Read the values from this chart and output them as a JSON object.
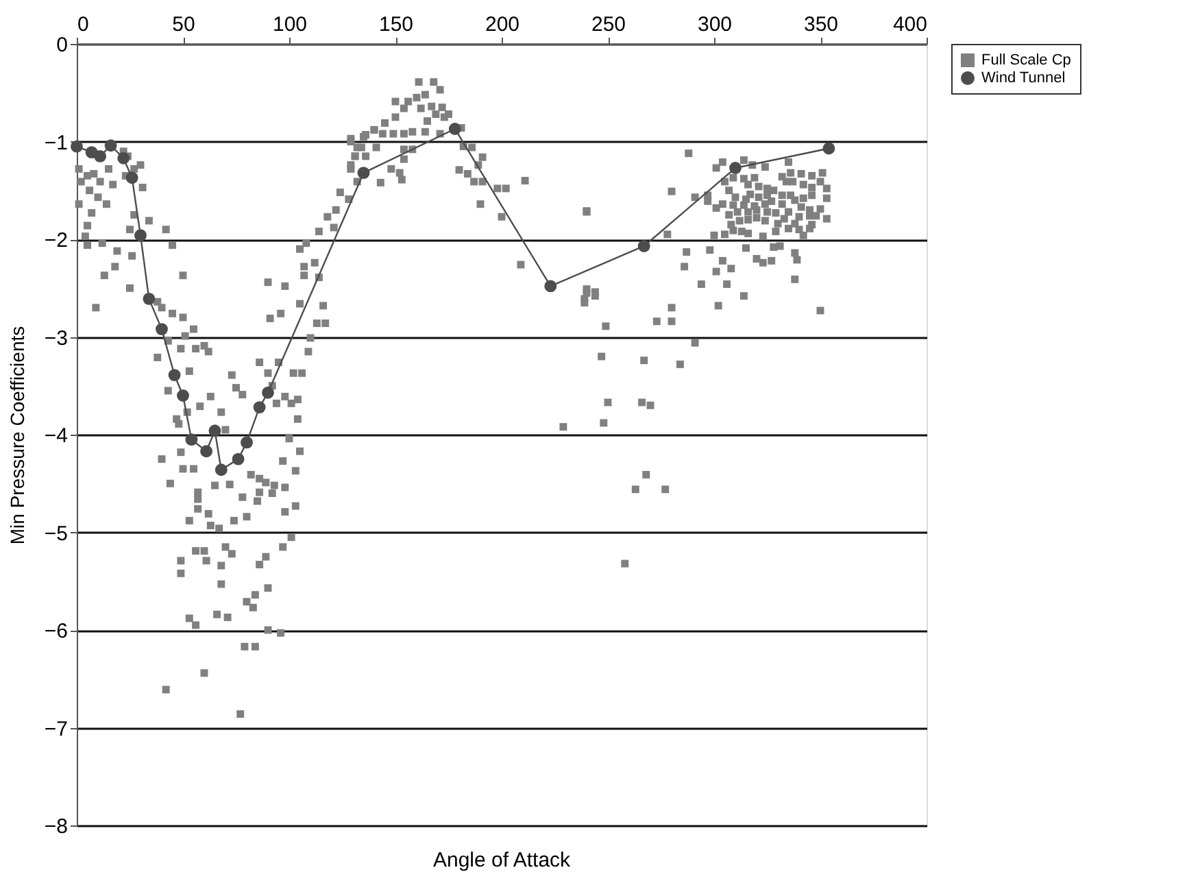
{
  "chart_data": {
    "type": "scatter",
    "xlabel": "Angle of Attack",
    "ylabel": "Min Pressure Coefficients",
    "xlim": [
      0,
      400
    ],
    "xticks": [
      0,
      50,
      100,
      150,
      200,
      250,
      300,
      350,
      400
    ],
    "ylim": [
      -8,
      0
    ],
    "yticks": [
      0,
      {
        "value": -1,
        "label": "−1"
      },
      {
        "value": -2,
        "label": "−2"
      },
      {
        "value": -3,
        "label": "−3"
      },
      {
        "value": -4,
        "label": "−4"
      },
      {
        "value": -5,
        "label": "−5"
      },
      {
        "value": -6,
        "label": "−6"
      },
      {
        "value": -7,
        "label": "−7"
      },
      {
        "value": -8,
        "label": "−8"
      }
    ],
    "grid": "y",
    "legend": "right",
    "series": [
      {
        "name": "Full Scale Cp",
        "type": "scatter",
        "marker": "square",
        "color": "#808080",
        "x": [
          1,
          5,
          2,
          8,
          6,
          11,
          10,
          15,
          17,
          14,
          1,
          7,
          5,
          4,
          5,
          12,
          9,
          13,
          18,
          19,
          22,
          24,
          30,
          27,
          23,
          31,
          27,
          25,
          26,
          34,
          42,
          45,
          25,
          50,
          38,
          40,
          45,
          50,
          55,
          43,
          51,
          49,
          38,
          56,
          62,
          60,
          53,
          43,
          52,
          58,
          63,
          73,
          75,
          78,
          68,
          70,
          47,
          48,
          86,
          90,
          92,
          94,
          98,
          101,
          104,
          106,
          104,
          90,
          98,
          91,
          96,
          105,
          107,
          107,
          112,
          114,
          116,
          113,
          117,
          110,
          109,
          105,
          114,
          118,
          122,
          121,
          124,
          129,
          131,
          132,
          136,
          129,
          136,
          140,
          108,
          102,
          95,
          40,
          49,
          50,
          55,
          44,
          57,
          57,
          57,
          53,
          63,
          67,
          62,
          65,
          72,
          78,
          85,
          86,
          92,
          98,
          103,
          80,
          74,
          82,
          86,
          89,
          93,
          98,
          97,
          103,
          105,
          100,
          101,
          97,
          89,
          86,
          90,
          84,
          80,
          83,
          70,
          73,
          68,
          68,
          66,
          71,
          56,
          60,
          61,
          49,
          49,
          53,
          56,
          90,
          96,
          79,
          84,
          60,
          42,
          77,
          161,
          168,
          164,
          171,
          150,
          156,
          160,
          154,
          162,
          167,
          172,
          165,
          169,
          173,
          150,
          145,
          140,
          135,
          144,
          149,
          154,
          158,
          164,
          171,
          175,
          181,
          129,
          141,
          154,
          158,
          134,
          186,
          182,
          131,
          191,
          154,
          148,
          129,
          152,
          153,
          143,
          180,
          184,
          189,
          187,
          191,
          198,
          202,
          211,
          190,
          200,
          132,
          128,
          240,
          209,
          240,
          244,
          239,
          229,
          288,
          280,
          240,
          278,
          291,
          297,
          297,
          301,
          304,
          301,
          314,
          318,
          324,
          335,
          332,
          336,
          341,
          346,
          351,
          305,
          309,
          314,
          319,
          316,
          321,
          325,
          328,
          334,
          337,
          342,
          346,
          350,
          353,
          307,
          310,
          315,
          317,
          321,
          325,
          332,
          336,
          338,
          342,
          346,
          353,
          304,
          309,
          314,
          319,
          324,
          327,
          332,
          341,
          345,
          350,
          307,
          311,
          316,
          320,
          325,
          329,
          335,
          340,
          345,
          348,
          353,
          308,
          312,
          316,
          320,
          324,
          330,
          333,
          338,
          346,
          300,
          305,
          309,
          313,
          316,
          323,
          329,
          335,
          340,
          342,
          345,
          287,
          298,
          304,
          301,
          308,
          286,
          294,
          306,
          315,
          320,
          323,
          327,
          328,
          331,
          338,
          339,
          338,
          350,
          314,
          302,
          280,
          273,
          280,
          240,
          244,
          239,
          249,
          291,
          247,
          267,
          284,
          250,
          266,
          270,
          248,
          268,
          263,
          277,
          258
        ],
        "values": [
          -1.28,
          -1.35,
          -1.41,
          -1.33,
          -1.5,
          -1.41,
          -1.57,
          -1.28,
          -1.44,
          -1.64,
          -1.64,
          -1.73,
          -1.86,
          -1.97,
          -2.06,
          -2.04,
          -2.7,
          -2.37,
          -2.28,
          -2.12,
          -1.1,
          -1.15,
          -1.24,
          -1.28,
          -1.35,
          -1.47,
          -1.75,
          -1.9,
          -2.17,
          -1.81,
          -1.9,
          -2.06,
          -2.5,
          -2.37,
          -2.64,
          -2.7,
          -2.76,
          -2.8,
          -2.92,
          -3.04,
          -2.99,
          -3.12,
          -3.21,
          -3.12,
          -3.15,
          -3.09,
          -3.35,
          -3.55,
          -3.77,
          -3.71,
          -3.61,
          -3.39,
          -3.52,
          -3.59,
          -3.77,
          -3.95,
          -3.84,
          -3.89,
          -3.26,
          -3.37,
          -3.5,
          -3.68,
          -3.61,
          -3.68,
          -3.64,
          -3.37,
          -3.84,
          -2.44,
          -2.48,
          -2.81,
          -2.76,
          -2.66,
          -2.37,
          -2.28,
          -2.24,
          -2.39,
          -2.68,
          -2.86,
          -2.86,
          -3.01,
          -3.15,
          -2.1,
          -1.92,
          -1.77,
          -1.7,
          -1.88,
          -1.52,
          -1.24,
          -1.15,
          -1.06,
          -1.15,
          -0.97,
          -0.93,
          -0.88,
          -2.04,
          -3.37,
          -3.26,
          -4.25,
          -4.18,
          -4.35,
          -4.35,
          -4.5,
          -4.59,
          -4.66,
          -4.76,
          -4.88,
          -4.93,
          -4.96,
          -4.81,
          -4.52,
          -4.51,
          -4.64,
          -4.68,
          -4.59,
          -4.6,
          -4.79,
          -4.73,
          -4.84,
          -4.88,
          -4.41,
          -4.45,
          -4.49,
          -4.52,
          -4.54,
          -4.27,
          -4.37,
          -4.17,
          -4.04,
          -5.05,
          -5.15,
          -5.25,
          -5.33,
          -5.57,
          -5.64,
          -5.71,
          -5.77,
          -5.15,
          -5.22,
          -5.34,
          -5.53,
          -5.84,
          -5.87,
          -5.19,
          -5.19,
          -5.29,
          -5.29,
          -5.42,
          -5.88,
          -5.95,
          -6.0,
          -6.03,
          -6.17,
          -6.17,
          -6.44,
          -6.61,
          -6.86,
          -0.39,
          -0.39,
          -0.52,
          -0.47,
          -0.59,
          -0.59,
          -0.55,
          -0.66,
          -0.66,
          -0.64,
          -0.65,
          -0.79,
          -0.72,
          -0.75,
          -0.75,
          -0.81,
          -0.88,
          -0.95,
          -0.92,
          -0.92,
          -0.92,
          -0.9,
          -0.9,
          -0.92,
          -0.72,
          -0.86,
          -1.0,
          -1.06,
          -1.08,
          -1.08,
          -1.06,
          -1.06,
          -1.05,
          -1.15,
          -1.16,
          -1.18,
          -1.28,
          -1.28,
          -1.32,
          -1.39,
          -1.42,
          -1.29,
          -1.33,
          -1.24,
          -1.41,
          -1.41,
          -1.48,
          -1.48,
          -1.4,
          -1.64,
          -1.77,
          -1.41,
          -1.59,
          -1.72,
          -2.26,
          -2.51,
          -2.54,
          -2.61,
          -3.92,
          -1.12,
          -1.51,
          -1.71,
          -1.95,
          -1.57,
          -1.55,
          -1.61,
          -1.68,
          -1.21,
          -1.27,
          -1.19,
          -1.24,
          -1.26,
          -1.21,
          -1.36,
          -1.32,
          -1.33,
          -1.35,
          -1.32,
          -1.41,
          -1.37,
          -1.38,
          -1.37,
          -1.44,
          -1.46,
          -1.48,
          -1.5,
          -1.41,
          -1.41,
          -1.44,
          -1.47,
          -1.41,
          -1.48,
          -1.5,
          -1.57,
          -1.59,
          -1.54,
          -1.57,
          -1.55,
          -1.55,
          -1.55,
          -1.6,
          -1.58,
          -1.55,
          -1.58,
          -1.64,
          -1.65,
          -1.65,
          -1.66,
          -1.64,
          -1.61,
          -1.64,
          -1.67,
          -1.7,
          -1.69,
          -1.75,
          -1.72,
          -1.72,
          -1.7,
          -1.72,
          -1.73,
          -1.72,
          -1.77,
          -1.76,
          -1.76,
          -1.79,
          -1.85,
          -1.81,
          -1.8,
          -1.78,
          -1.81,
          -1.84,
          -1.79,
          -1.84,
          -1.85,
          -1.96,
          -1.95,
          -1.91,
          -1.92,
          -1.94,
          -1.97,
          -1.92,
          -1.89,
          -1.9,
          -1.96,
          -1.89,
          -2.13,
          -2.11,
          -2.22,
          -2.33,
          -2.3,
          -2.28,
          -2.46,
          -2.46,
          -2.09,
          -2.2,
          -2.24,
          -2.22,
          -2.08,
          -2.07,
          -2.14,
          -2.21,
          -2.41,
          -2.73,
          -2.58,
          -2.68,
          -2.7,
          -2.84,
          -2.84,
          -2.55,
          -2.58,
          -2.65,
          -2.89,
          -3.06,
          -3.2,
          -3.24,
          -3.28,
          -3.67,
          -3.67,
          -3.7,
          -3.88,
          -4.41,
          -4.56,
          -4.56,
          -5.32
        ]
      },
      {
        "name": "Wind Tunnel",
        "type": "line",
        "marker": "circle",
        "line_style": "solid",
        "color": "#4d4d4d",
        "x": [
          0,
          7,
          11,
          16,
          22,
          26,
          30,
          34,
          40,
          46,
          50,
          54,
          61,
          65,
          68,
          76,
          80,
          86,
          90,
          135,
          178,
          223,
          267,
          310,
          354
        ],
        "values": [
          -1.05,
          -1.11,
          -1.15,
          -1.04,
          -1.17,
          -1.37,
          -1.96,
          -2.61,
          -2.92,
          -3.39,
          -3.6,
          -4.05,
          -4.17,
          -3.96,
          -4.36,
          -4.25,
          -4.08,
          -3.72,
          -3.57,
          -1.32,
          -0.87,
          -2.48,
          -2.07,
          -1.27,
          -1.07
        ]
      }
    ]
  }
}
